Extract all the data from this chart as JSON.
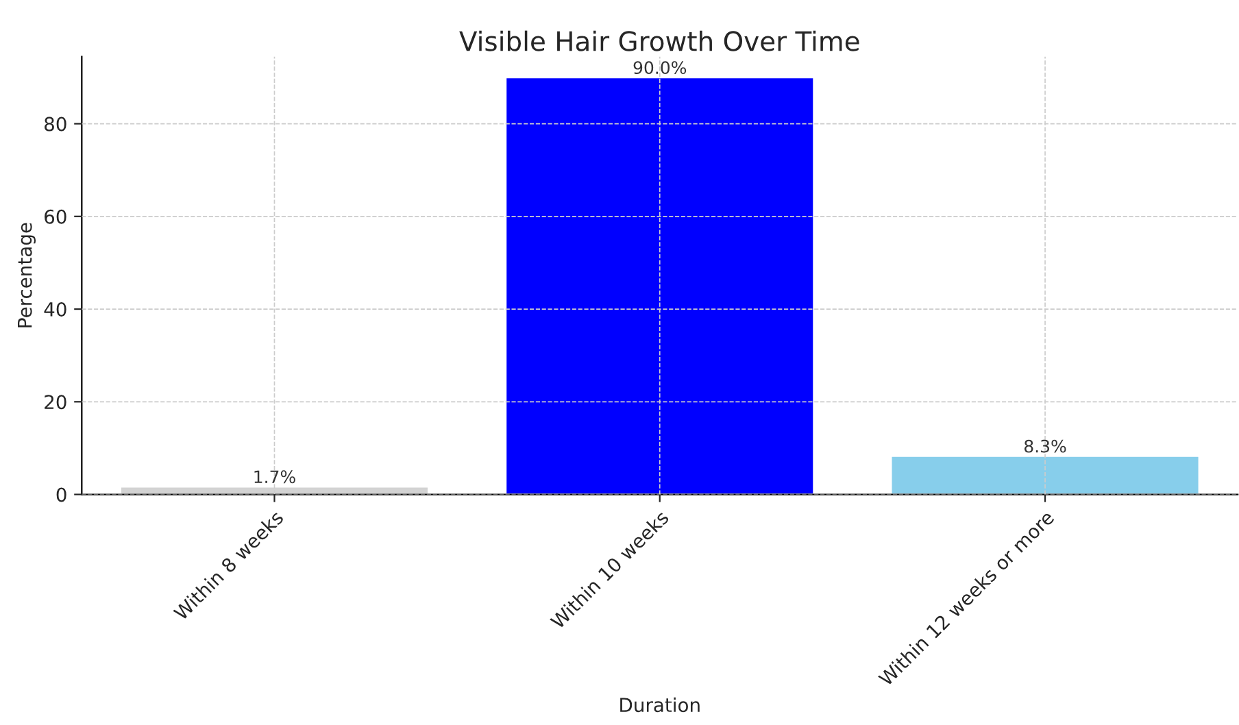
{
  "chart_data": {
    "type": "bar",
    "title": "Visible Hair Growth Over Time",
    "xlabel": "Duration",
    "ylabel": "Percentage",
    "categories": [
      "Within 8 weeks",
      "Within 10 weeks",
      "Within 12 weeks or more"
    ],
    "values": [
      1.7,
      90.0,
      8.3
    ],
    "colors": [
      "#d3d3d3",
      "#0000ff",
      "#87ceeb"
    ],
    "value_labels": [
      "1.7%",
      "90.0%",
      "8.3%"
    ],
    "ylim": [
      0,
      94.5
    ],
    "yticks": [
      0,
      20,
      40,
      60,
      80
    ],
    "grid": true
  }
}
